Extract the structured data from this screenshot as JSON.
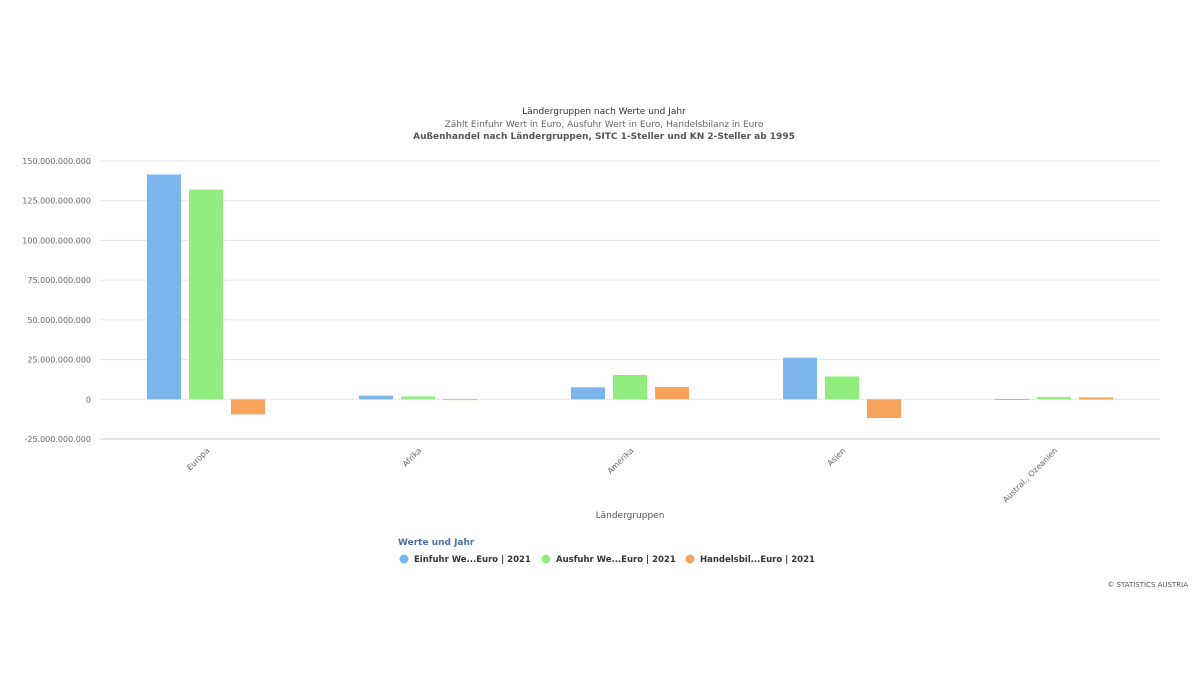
{
  "chart_data": {
    "type": "bar",
    "title": "Ländergruppen nach Werte und Jahr",
    "subtitle": "Zählt Einfuhr Wert in Euro, Ausfuhr Wert in Euro, Handelsbilanz in Euro",
    "subtitle2": "Außenhandel nach Ländergruppen, SITC 1-Steller und KN 2-Steller ab 1995",
    "xlabel": "Ländergruppen",
    "ylabel": "",
    "categories": [
      "Europa",
      "Afrika",
      "Amerika",
      "Asien",
      "Austral., Ozeanien"
    ],
    "ylim": [
      -25000000000,
      150000000000
    ],
    "yticks": [
      -25000000000,
      0,
      25000000000,
      50000000000,
      75000000000,
      100000000000,
      125000000000,
      150000000000
    ],
    "ytick_labels": [
      "-25.000.000.000",
      "0",
      "25.000.000.000",
      "50.000.000.000",
      "75.000.000.000",
      "100.000.000.000",
      "125.000.000.000",
      "150.000.000.000"
    ],
    "grid": true,
    "legend_title": "Werte und Jahr",
    "legend_position": "bottom",
    "series": [
      {
        "name": "Einfuhr We...Euro | 2021",
        "color": "#7cb5ec",
        "values": [
          141500000000,
          2300000000,
          7500000000,
          26200000000,
          150000000
        ]
      },
      {
        "name": "Ausfuhr We...Euro | 2021",
        "color": "#90ed7d",
        "values": [
          132000000000,
          1800000000,
          15300000000,
          14400000000,
          1400000000
        ]
      },
      {
        "name": "Handelsbil...Euro | 2021",
        "color": "#f7a35c",
        "values": [
          -9500000000,
          -500000000,
          7700000000,
          -11800000000,
          1200000000
        ]
      }
    ]
  },
  "credit": "© STATISTICS AUSTRIA"
}
